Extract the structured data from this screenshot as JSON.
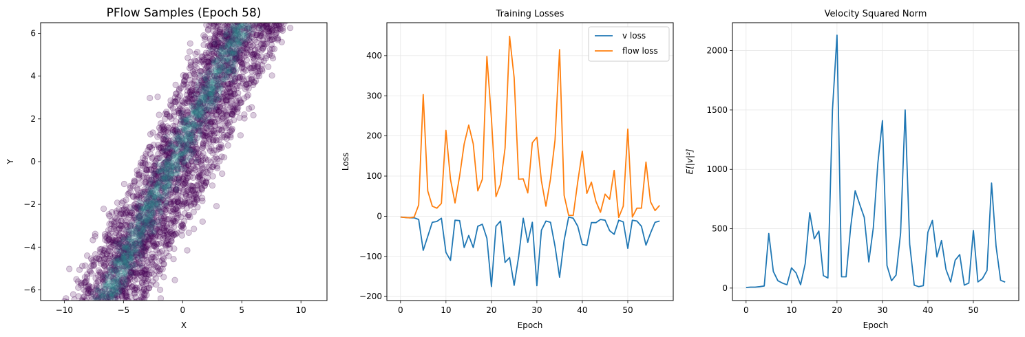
{
  "chart_data": [
    {
      "type": "scatter",
      "title": "PFlow Samples (Epoch 58)",
      "xlabel": "X",
      "ylabel": "Y",
      "xlim": [
        -12,
        12.2
      ],
      "ylim": [
        -6.5,
        6.5
      ],
      "xticks": [
        "−10",
        "−5",
        "0",
        "5",
        "10"
      ],
      "yticks": [
        "−6",
        "−4",
        "−2",
        "0",
        "2",
        "4",
        "6"
      ],
      "grid": false,
      "point_color": "#440154",
      "density_color": "#2a8c8c",
      "band": {
        "y_min": -6.5,
        "y_max": 6.5,
        "center_x_at_y_min": -6.2,
        "center_x_at_y_max": 5.6,
        "core_half_width": 1.6,
        "outer_half_width": 3.2,
        "scatter_half_width": 4.5
      }
    },
    {
      "type": "line",
      "title": "Training Losses",
      "xlabel": "Epoch",
      "ylabel": "Loss",
      "xlim": [
        -3,
        60
      ],
      "ylim": [
        -210,
        482
      ],
      "xticks": [
        "0",
        "10",
        "20",
        "30",
        "40",
        "50"
      ],
      "yticks": [
        "−200",
        "−100",
        "0",
        "100",
        "200",
        "300",
        "400"
      ],
      "grid": true,
      "legend": "top-right",
      "x": [
        0,
        1,
        2,
        3,
        4,
        5,
        6,
        7,
        8,
        9,
        10,
        11,
        12,
        13,
        14,
        15,
        16,
        17,
        18,
        19,
        20,
        21,
        22,
        23,
        24,
        25,
        26,
        27,
        28,
        29,
        30,
        31,
        32,
        33,
        34,
        35,
        36,
        37,
        38,
        39,
        40,
        41,
        42,
        43,
        44,
        45,
        46,
        47,
        48,
        49,
        50,
        51,
        52,
        53,
        54,
        55,
        56,
        57
      ],
      "series": [
        {
          "name": "v loss",
          "color": "#1f77b4",
          "values": [
            -2,
            -3,
            -4,
            -4,
            -8,
            -85,
            -50,
            -15,
            -13,
            -5,
            -90,
            -110,
            -10,
            -11,
            -78,
            -48,
            -78,
            -25,
            -20,
            -55,
            -175,
            -25,
            -12,
            -115,
            -103,
            -172,
            -100,
            -5,
            -65,
            -15,
            -173,
            -35,
            -12,
            -15,
            -75,
            -152,
            -60,
            -2,
            -5,
            -25,
            -70,
            -73,
            -16,
            -16,
            -8,
            -10,
            -36,
            -45,
            -10,
            -14,
            -80,
            -10,
            -12,
            -25,
            -72,
            -42,
            -15,
            -12
          ]
        },
        {
          "name": "flow loss",
          "color": "#ff7f0e",
          "values": [
            -2,
            -3,
            -4,
            -2,
            28,
            303,
            63,
            25,
            20,
            32,
            214,
            92,
            33,
            100,
            180,
            227,
            180,
            63,
            92,
            398,
            243,
            49,
            80,
            170,
            448,
            345,
            92,
            93,
            58,
            183,
            197,
            88,
            25,
            93,
            190,
            415,
            52,
            2,
            2,
            86,
            162,
            57,
            85,
            37,
            10,
            55,
            42,
            114,
            -3,
            25,
            217,
            -2,
            20,
            20,
            135,
            36,
            14,
            27
          ]
        }
      ]
    },
    {
      "type": "line",
      "title": "Velocity Squared Norm",
      "xlabel": "Epoch",
      "ylabel": "E[|v|²]",
      "xlim": [
        -3,
        60
      ],
      "ylim": [
        -105,
        2235
      ],
      "xticks": [
        "0",
        "10",
        "20",
        "30",
        "40",
        "50"
      ],
      "yticks": [
        "0",
        "500",
        "1000",
        "1500",
        "2000"
      ],
      "grid": true,
      "x": [
        0,
        1,
        2,
        3,
        4,
        5,
        6,
        7,
        8,
        9,
        10,
        11,
        12,
        13,
        14,
        15,
        16,
        17,
        18,
        19,
        20,
        21,
        22,
        23,
        24,
        25,
        26,
        27,
        28,
        29,
        30,
        31,
        32,
        33,
        34,
        35,
        36,
        37,
        38,
        39,
        40,
        41,
        42,
        43,
        44,
        45,
        46,
        47,
        48,
        49,
        50,
        51,
        52,
        53,
        54,
        55,
        56,
        57
      ],
      "series": [
        {
          "color": "#1f77b4",
          "values": [
            5,
            8,
            8,
            12,
            18,
            460,
            140,
            62,
            42,
            28,
            170,
            128,
            28,
            205,
            635,
            415,
            480,
            105,
            85,
            1500,
            2130,
            95,
            95,
            510,
            820,
            705,
            595,
            220,
            510,
            1055,
            1410,
            190,
            62,
            110,
            465,
            1500,
            370,
            25,
            12,
            20,
            470,
            570,
            262,
            400,
            155,
            52,
            235,
            282,
            25,
            42,
            485,
            52,
            80,
            148,
            885,
            350,
            65,
            50
          ]
        }
      ]
    }
  ]
}
